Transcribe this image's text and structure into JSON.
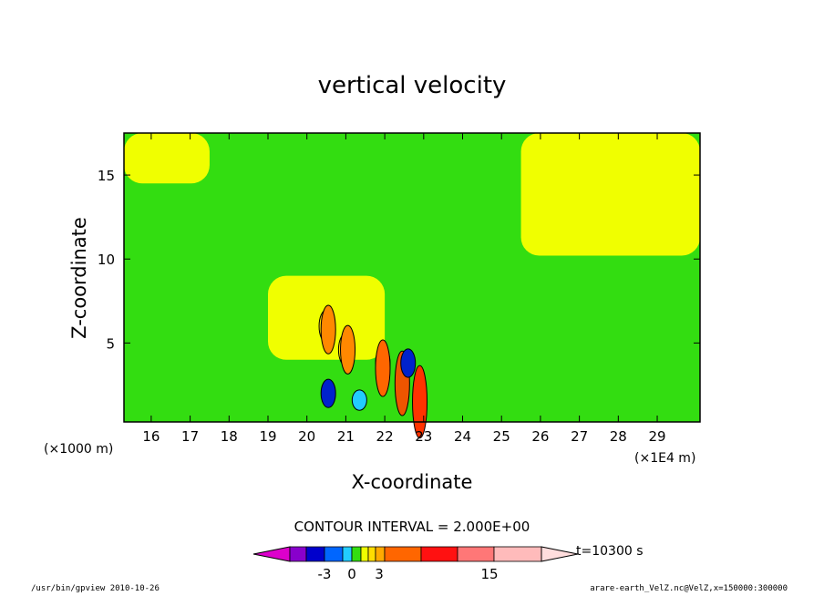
{
  "chart_data": {
    "type": "heatmap",
    "title": "vertical velocity",
    "xlabel": "X-coordinate",
    "ylabel": "Z-coordinate",
    "x_unit_left": "(×1000 m)",
    "x_unit_right": "(×1E4 m)",
    "xlim": [
      15.3,
      30.1
    ],
    "ylim": [
      0.3,
      17.5
    ],
    "x_ticks": [
      16,
      17,
      18,
      19,
      20,
      21,
      22,
      23,
      24,
      25,
      26,
      27,
      28,
      29
    ],
    "x_tick_labels": [
      "16",
      "17",
      "18",
      "19",
      "20",
      "21",
      "22",
      "23",
      "24",
      "25",
      "26",
      "27",
      "28",
      "29"
    ],
    "y_ticks": [
      5,
      10,
      15
    ],
    "y_tick_labels": [
      "5",
      "10",
      "15"
    ],
    "grid": false,
    "field_regions": [
      {
        "level": "weak downward",
        "color": "#33dd11",
        "x": [
          15.3,
          30.1
        ],
        "z": [
          0.3,
          17.5
        ]
      },
      {
        "level": "weak upward",
        "color": "#f0ff00",
        "x": [
          25.5,
          30.1
        ],
        "z": [
          10.2,
          17.5
        ]
      },
      {
        "level": "weak upward",
        "color": "#f0ff00",
        "x": [
          19.0,
          22.0
        ],
        "z": [
          4.0,
          9.0
        ]
      },
      {
        "level": "weak upward",
        "color": "#f0ff00",
        "x": [
          15.3,
          17.5
        ],
        "z": [
          14.5,
          17.5
        ]
      }
    ],
    "cells": [
      {
        "x": 20.5,
        "z": 6.0,
        "w": 4,
        "color": "#ffdd00"
      },
      {
        "x": 20.55,
        "z": 5.8,
        "w": 8,
        "color": "#ff8800"
      },
      {
        "x": 21.0,
        "z": 4.6,
        "w": 4,
        "color": "#ffdd00"
      },
      {
        "x": 21.05,
        "z": 4.6,
        "w": 8,
        "color": "#ff8800"
      },
      {
        "x": 21.95,
        "z": 3.8,
        "w": 4,
        "color": "#ffdd00"
      },
      {
        "x": 21.95,
        "z": 3.5,
        "w": 10,
        "color": "#ff6600"
      },
      {
        "x": 22.45,
        "z": 2.6,
        "w": 12,
        "color": "#ee5500"
      },
      {
        "x": 22.9,
        "z": 1.5,
        "w": 14,
        "color": "#ff3300"
      },
      {
        "x": 20.55,
        "z": 2.0,
        "w": -3,
        "color": "#0022cc"
      },
      {
        "x": 21.35,
        "z": 1.6,
        "w": -1,
        "color": "#22ccff"
      },
      {
        "x": 22.6,
        "z": 3.8,
        "w": -3,
        "color": "#0022cc"
      }
    ],
    "colorbar": {
      "levels": [
        "-3",
        "0",
        "3",
        "15"
      ],
      "colors": [
        "#dd00cc",
        "#8800cc",
        "#0000cc",
        "#0066ff",
        "#22ccff",
        "#33dd11",
        "#f0ff00",
        "#ffdd00",
        "#ffaa00",
        "#ff6600",
        "#ff1111",
        "#ff7777",
        "#ffbbbb",
        "#ffdddd"
      ]
    },
    "contour_interval": "CONTOUR INTERVAL = 2.000E+00",
    "time_label": "t=10300 s"
  },
  "footer": {
    "left": "/usr/bin/gpview  2010-10-26",
    "right": "arare-earth_VelZ.nc@VelZ,x=150000:300000"
  }
}
